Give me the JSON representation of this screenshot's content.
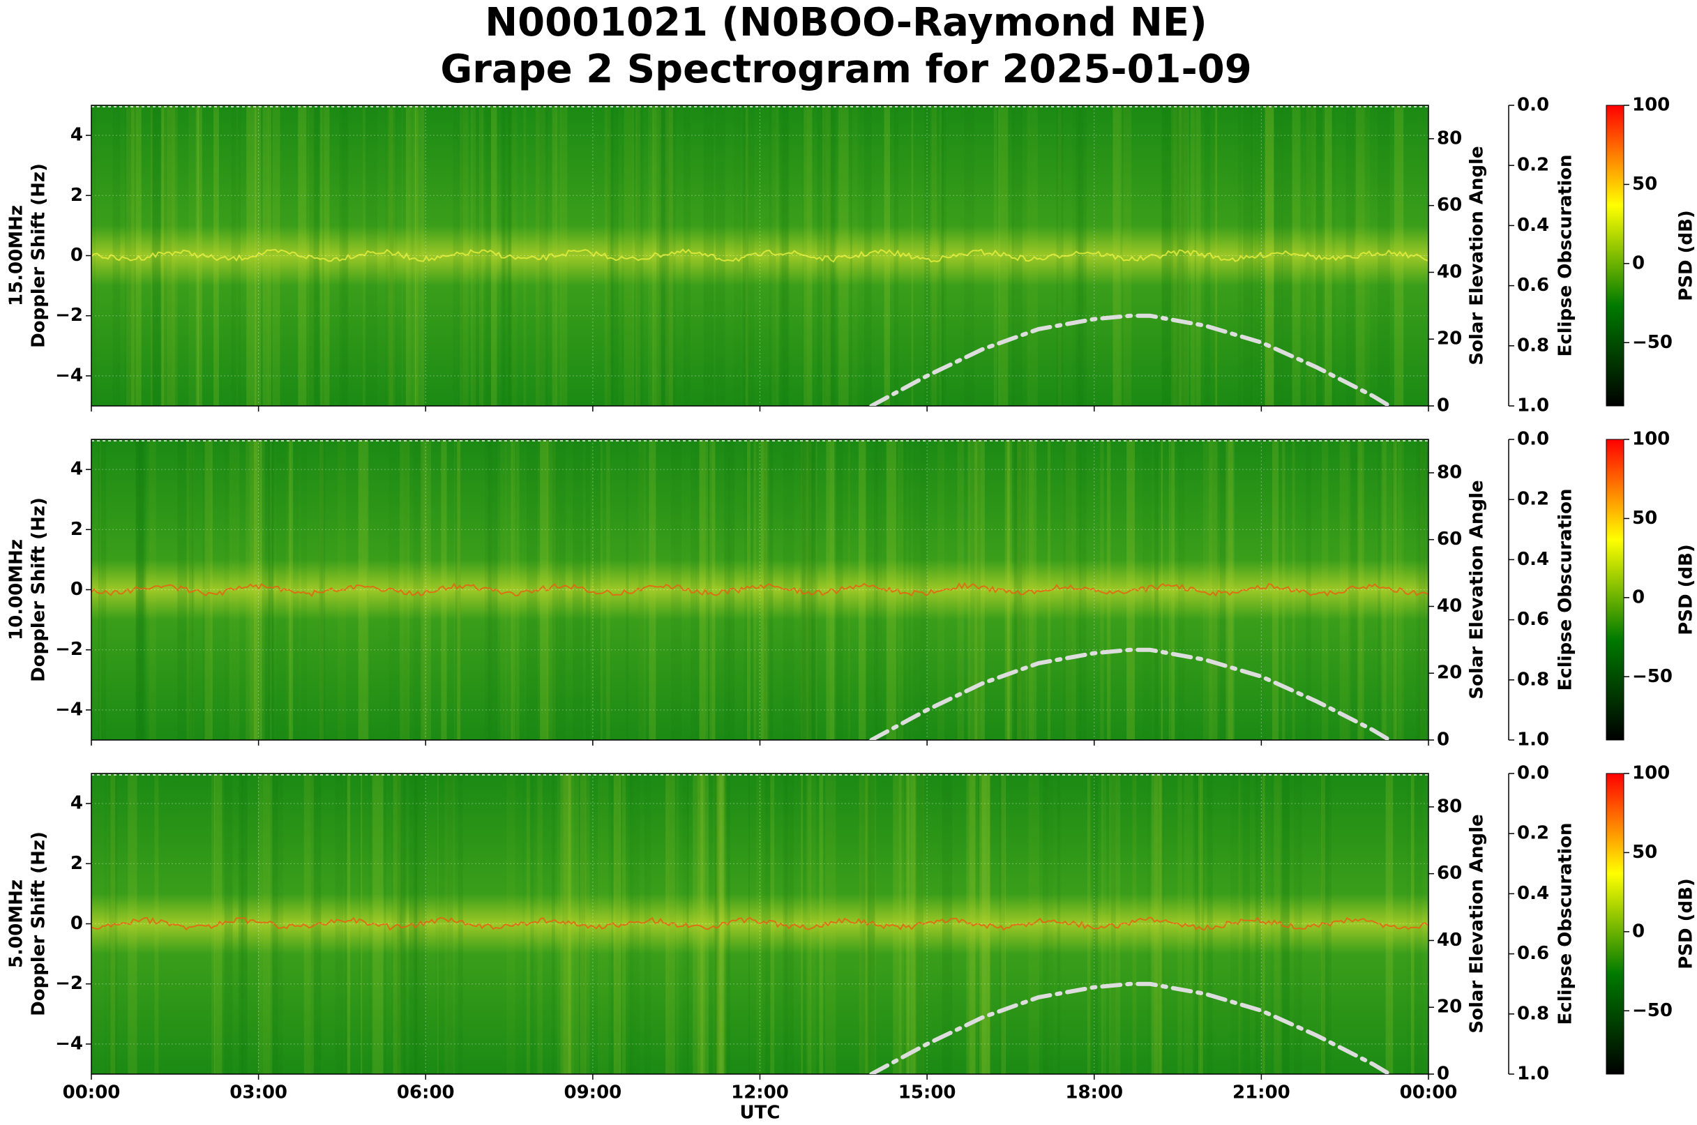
{
  "title": "N0001021 (N0BOO-Raymond NE)",
  "subtitle": "Grape 2 Spectrogram for 2025-01-09",
  "chart_data": [
    {
      "type": "spectrogram",
      "frequency_label": "15.00MHz",
      "ylabel": "Doppler Shift (Hz)",
      "xlim": [
        0,
        24
      ],
      "xticks": [
        0,
        3,
        6,
        9,
        12,
        15,
        18,
        21,
        24
      ],
      "ylim": [
        -5,
        5
      ],
      "yticks": [
        {
          "value": -4,
          "label": "−4"
        },
        {
          "value": -2,
          "label": "−2"
        },
        0,
        2,
        4
      ],
      "y2label": "Solar Elevation Angle",
      "y2lim": [
        0,
        90
      ],
      "y2ticks": [
        0,
        20,
        40,
        60,
        80
      ],
      "y3label": "Eclipse Obscuration",
      "y3lim": [
        1,
        0
      ],
      "y3ticks": [
        {
          "value": 0,
          "label": "0.0"
        },
        0.2,
        0.4,
        0.6,
        0.8,
        {
          "value": 1,
          "label": "1.0"
        }
      ],
      "colorbar": {
        "label": "PSD (dB)",
        "lim": [
          -90,
          100
        ],
        "ticks": [
          {
            "value": -50,
            "label": "−50"
          },
          0,
          50,
          100
        ],
        "colors": [
          "#000000",
          "#007a00",
          "#ffff00",
          "#ff0000"
        ]
      },
      "grid": true,
      "series": [
        {
          "color": "#dddddd",
          "axis": "y2",
          "x": [
            14,
            15,
            16,
            17,
            18,
            18.65,
            19,
            20,
            21,
            22,
            23,
            23.3
          ],
          "values": [
            0,
            9,
            17,
            23,
            26,
            27,
            27,
            24,
            19,
            11.5,
            3,
            0
          ]
        }
      ]
    },
    {
      "type": "spectrogram",
      "frequency_label": "10.00MHz",
      "ylabel": "Doppler Shift (Hz)",
      "xlim": [
        0,
        24
      ],
      "xticks": [
        0,
        3,
        6,
        9,
        12,
        15,
        18,
        21,
        24
      ],
      "ylim": [
        -5,
        5
      ],
      "yticks": [
        {
          "value": -4,
          "label": "−4"
        },
        {
          "value": -2,
          "label": "−2"
        },
        0,
        2,
        4
      ],
      "y2label": "Solar Elevation Angle",
      "y2lim": [
        0,
        90
      ],
      "y2ticks": [
        0,
        20,
        40,
        60,
        80
      ],
      "y3label": "Eclipse Obscuration",
      "y3lim": [
        1,
        0
      ],
      "y3ticks": [
        {
          "value": 0,
          "label": "0.0"
        },
        0.2,
        0.4,
        0.6,
        0.8,
        {
          "value": 1,
          "label": "1.0"
        }
      ],
      "colorbar": {
        "label": "PSD (dB)",
        "lim": [
          -90,
          100
        ],
        "ticks": [
          {
            "value": -50,
            "label": "−50"
          },
          0,
          50,
          100
        ],
        "colors": [
          "#000000",
          "#007a00",
          "#ffff00",
          "#ff0000"
        ]
      },
      "grid": true,
      "series": [
        {
          "color": "#dddddd",
          "axis": "y2",
          "x": [
            14,
            15,
            16,
            17,
            18,
            18.65,
            19,
            20,
            21,
            22,
            23,
            23.3
          ],
          "values": [
            0,
            9,
            17,
            23,
            26,
            27,
            27,
            24,
            19,
            11.5,
            3,
            0
          ]
        }
      ]
    },
    {
      "type": "spectrogram",
      "frequency_label": "5.00MHz",
      "ylabel": "Doppler Shift (Hz)",
      "xlabel": "UTC",
      "xlim": [
        0,
        24
      ],
      "xticks": [
        {
          "value": 0,
          "label": "00:00"
        },
        {
          "value": 3,
          "label": "03:00"
        },
        {
          "value": 6,
          "label": "06:00"
        },
        {
          "value": 9,
          "label": "09:00"
        },
        {
          "value": 12,
          "label": "12:00"
        },
        {
          "value": 15,
          "label": "15:00"
        },
        {
          "value": 18,
          "label": "18:00"
        },
        {
          "value": 21,
          "label": "21:00"
        },
        {
          "value": 24,
          "label": "00:00"
        }
      ],
      "ylim": [
        -5,
        5
      ],
      "yticks": [
        {
          "value": -4,
          "label": "−4"
        },
        {
          "value": -2,
          "label": "−2"
        },
        0,
        2,
        4
      ],
      "y2label": "Solar Elevation Angle",
      "y2lim": [
        0,
        90
      ],
      "y2ticks": [
        0,
        20,
        40,
        60,
        80
      ],
      "y3label": "Eclipse Obscuration",
      "y3lim": [
        1,
        0
      ],
      "y3ticks": [
        {
          "value": 0,
          "label": "0.0"
        },
        0.2,
        0.4,
        0.6,
        0.8,
        {
          "value": 1,
          "label": "1.0"
        }
      ],
      "colorbar": {
        "label": "PSD (dB)",
        "lim": [
          -90,
          100
        ],
        "ticks": [
          {
            "value": -50,
            "label": "−50"
          },
          0,
          50,
          100
        ],
        "colors": [
          "#000000",
          "#007a00",
          "#ffff00",
          "#ff0000"
        ]
      },
      "grid": true,
      "series": [
        {
          "color": "#dddddd",
          "axis": "y2",
          "x": [
            14,
            15,
            16,
            17,
            18,
            18.65,
            19,
            20,
            21,
            22,
            23,
            23.3
          ],
          "values": [
            0,
            9,
            17,
            23,
            26,
            27,
            27,
            24,
            19,
            11.5,
            3,
            0
          ]
        }
      ]
    }
  ]
}
